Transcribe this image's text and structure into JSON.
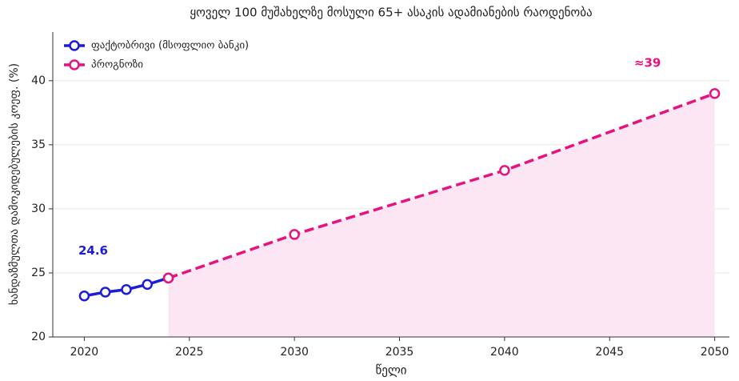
{
  "chart_data": {
    "type": "line",
    "title": "ყოველ 100 მუშახელზე მოსული 65+ ასაკის ადამიანების რაოდენობა",
    "xlabel": "წელი",
    "ylabel": "ხანდაზმულთა დამოკიდებულების კოეფ. (%)",
    "series": [
      {
        "name": "ფაქტობრივი (მსოფლიო ბანკი)",
        "color": "#1c1cd9",
        "style": "solid",
        "x": [
          2020,
          2021,
          2022,
          2023,
          2024
        ],
        "values": [
          23.2,
          23.5,
          23.7,
          24.1,
          24.6
        ]
      },
      {
        "name": "პროგნოზი",
        "color": "#e8127f",
        "style": "dashed",
        "fill": "#fde6f3",
        "x": [
          2024,
          2030,
          2040,
          2050
        ],
        "values": [
          24.6,
          28,
          33,
          39
        ]
      }
    ],
    "annotations": [
      {
        "text": "24.6",
        "series": 0
      },
      {
        "text": "≈39",
        "series": 1
      }
    ],
    "xlim": [
      2018.5,
      2050.7
    ],
    "xticks": [
      2020,
      2025,
      2030,
      2035,
      2040,
      2045,
      2050
    ],
    "ylim": [
      20,
      43.8
    ],
    "yticks": [
      20,
      25,
      30,
      35,
      40
    ],
    "grid": true,
    "legend": "upper left"
  }
}
